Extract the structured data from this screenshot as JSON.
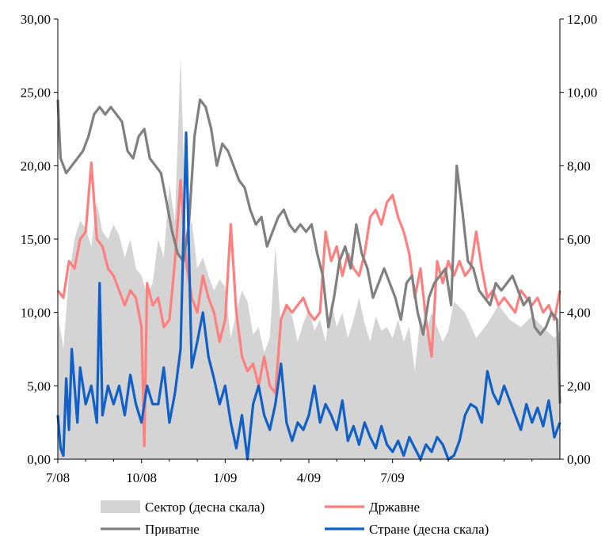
{
  "chart_data": {
    "type": "line",
    "title": "",
    "x_tick_labels": [
      "7/08",
      "10/08",
      "1/09",
      "4/09",
      "7/09"
    ],
    "y_left": {
      "ylim": [
        0,
        30
      ],
      "ticks": [
        "0,00",
        "5,00",
        "10,00",
        "15,00",
        "20,00",
        "25,00",
        "30,00"
      ]
    },
    "y_right": {
      "ylim": [
        0,
        12
      ],
      "ticks": [
        "0,00",
        "2,00",
        "4,00",
        "6,00",
        "8,00",
        "10,00",
        "12,00"
      ]
    },
    "x_range_months": [
      0,
      18
    ],
    "grid": false,
    "legend_position": "bottom",
    "legend": [
      {
        "label": "Сектор (десна скала)",
        "kind": "area",
        "color": "#d4d4d4"
      },
      {
        "label": "Државне",
        "kind": "line",
        "color": "#ff7f7f"
      },
      {
        "label": "Приватне",
        "kind": "line",
        "color": "#808080"
      },
      {
        "label": "Стране (десна скала)",
        "kind": "line",
        "color": "#1060c8"
      }
    ],
    "series": [
      {
        "name": "Сектор (десна скала)",
        "axis": "right",
        "style": "area",
        "color": "#d4d4d4",
        "x": [
          0,
          0.2,
          0.4,
          0.6,
          0.8,
          1.0,
          1.2,
          1.4,
          1.6,
          1.8,
          2.0,
          2.2,
          2.4,
          2.6,
          2.8,
          3.0,
          3.2,
          3.4,
          3.6,
          3.8,
          4.0,
          4.2,
          4.4,
          4.6,
          4.8,
          5.0,
          5.2,
          5.4,
          5.6,
          5.8,
          6.0,
          6.2,
          6.4,
          6.6,
          6.8,
          7.0,
          7.2,
          7.4,
          7.6,
          7.8,
          8.0,
          8.2,
          8.4,
          8.6,
          8.8,
          9.0,
          9.2,
          9.4,
          9.6,
          9.8,
          10.0,
          10.2,
          10.4,
          10.6,
          10.8,
          11.0,
          11.2,
          11.4,
          11.6,
          11.8,
          12.0,
          12.2,
          12.4,
          12.6,
          12.8,
          13.0,
          13.2,
          13.4,
          13.6,
          13.8,
          14.0,
          14.2,
          14.6,
          15.0,
          15.4,
          15.8,
          16.2,
          16.6,
          17.0,
          17.4,
          17.8,
          18.0
        ],
        "values": [
          4.0,
          3.0,
          5.0,
          6.0,
          6.5,
          6.3,
          5.8,
          7.0,
          6.2,
          6.0,
          6.4,
          6.1,
          5.5,
          6.0,
          5.2,
          5.0,
          4.5,
          4.8,
          6.0,
          5.5,
          7.5,
          6.5,
          11.0,
          6.0,
          6.5,
          5.2,
          5.5,
          5.0,
          4.6,
          4.9,
          4.7,
          3.3,
          4.0,
          4.6,
          4.3,
          3.4,
          3.6,
          2.9,
          3.3,
          5.8,
          3.6,
          4.2,
          3.9,
          3.2,
          3.7,
          4.1,
          3.5,
          3.8,
          3.2,
          4.3,
          3.6,
          4.0,
          3.3,
          3.8,
          4.4,
          3.7,
          3.2,
          3.9,
          3.5,
          3.6,
          3.3,
          3.8,
          3.2,
          3.6,
          2.4,
          3.9,
          3.4,
          4.0,
          3.6,
          3.2,
          3.5,
          4.3,
          4.0,
          3.3,
          3.7,
          4.2,
          3.8,
          3.6,
          3.9,
          3.6,
          3.3,
          3.5
        ]
      },
      {
        "name": "Државне",
        "axis": "left",
        "style": "line",
        "color": "#ff7f7f",
        "x": [
          0,
          0.2,
          0.4,
          0.6,
          0.8,
          1.0,
          1.2,
          1.4,
          1.6,
          1.8,
          2.0,
          2.2,
          2.4,
          2.6,
          2.8,
          3.0,
          3.1,
          3.2,
          3.4,
          3.6,
          3.8,
          4.0,
          4.2,
          4.4,
          4.6,
          4.8,
          5.0,
          5.2,
          5.4,
          5.6,
          5.8,
          6.0,
          6.2,
          6.4,
          6.6,
          6.8,
          7.0,
          7.2,
          7.4,
          7.6,
          7.8,
          8.0,
          8.2,
          8.4,
          8.6,
          8.8,
          9.0,
          9.2,
          9.4,
          9.6,
          9.8,
          10.0,
          10.2,
          10.4,
          10.6,
          10.8,
          11.0,
          11.2,
          11.4,
          11.6,
          11.8,
          12.0,
          12.2,
          12.4,
          12.6,
          12.8,
          13.0,
          13.2,
          13.4,
          13.6,
          13.8,
          14.0,
          14.2,
          14.4,
          14.6,
          14.8,
          15.0,
          15.2,
          15.4,
          15.6,
          15.8,
          16.0,
          16.2,
          16.4,
          16.6,
          16.8,
          17.0,
          17.2,
          17.4,
          17.6,
          17.8,
          18.0
        ],
        "values": [
          11.5,
          11.0,
          13.5,
          13.0,
          15.0,
          15.5,
          20.2,
          15.0,
          14.5,
          13.0,
          12.5,
          11.5,
          10.5,
          11.5,
          11.0,
          9.0,
          0.9,
          12.0,
          10.5,
          11.0,
          9.0,
          9.5,
          13.5,
          19.0,
          13.5,
          11.0,
          10.0,
          12.5,
          11.0,
          10.0,
          8.0,
          9.5,
          16.0,
          10.0,
          7.0,
          6.0,
          6.5,
          5.0,
          7.0,
          5.0,
          4.5,
          9.5,
          10.5,
          10.0,
          10.5,
          11.0,
          10.0,
          9.5,
          10.0,
          15.5,
          13.5,
          14.5,
          12.5,
          14.0,
          13.0,
          12.5,
          14.0,
          16.5,
          17.0,
          16.0,
          17.5,
          18.0,
          16.5,
          15.5,
          14.0,
          11.0,
          13.0,
          9.5,
          7.0,
          13.5,
          12.0,
          13.5,
          12.5,
          13.5,
          12.5,
          13.0,
          15.5,
          13.0,
          11.0,
          11.5,
          10.5,
          11.0,
          10.5,
          10.0,
          11.5,
          11.0,
          10.5,
          11.0,
          10.0,
          10.5,
          9.5,
          11.5
        ]
      },
      {
        "name": "Приватне",
        "axis": "left",
        "style": "line",
        "color": "#808080",
        "x": [
          0,
          0.1,
          0.3,
          0.5,
          0.7,
          0.9,
          1.1,
          1.3,
          1.5,
          1.7,
          1.9,
          2.1,
          2.3,
          2.5,
          2.7,
          2.9,
          3.1,
          3.3,
          3.5,
          3.7,
          3.9,
          4.1,
          4.3,
          4.5,
          4.7,
          4.9,
          5.1,
          5.3,
          5.5,
          5.7,
          5.9,
          6.1,
          6.3,
          6.5,
          6.7,
          6.9,
          7.1,
          7.3,
          7.5,
          7.7,
          7.9,
          8.1,
          8.3,
          8.5,
          8.7,
          8.9,
          9.1,
          9.3,
          9.5,
          9.7,
          9.9,
          10.1,
          10.3,
          10.5,
          10.7,
          10.9,
          11.1,
          11.3,
          11.5,
          11.7,
          11.9,
          12.1,
          12.3,
          12.5,
          12.7,
          12.9,
          13.1,
          13.3,
          13.5,
          13.7,
          13.9,
          14.1,
          14.3,
          14.5,
          14.7,
          14.9,
          15.1,
          15.3,
          15.5,
          15.7,
          15.9,
          16.1,
          16.3,
          16.5,
          16.7,
          16.9,
          17.1,
          17.3,
          17.5,
          17.7,
          17.9,
          18.0
        ],
        "values": [
          24.5,
          20.5,
          19.5,
          20.0,
          20.5,
          21.0,
          22.0,
          23.5,
          24.0,
          23.5,
          24.0,
          23.5,
          23.0,
          21.0,
          20.5,
          22.0,
          22.5,
          20.5,
          20.0,
          19.5,
          17.5,
          15.5,
          14.0,
          13.5,
          16.0,
          22.0,
          24.5,
          24.0,
          22.5,
          20.0,
          21.5,
          21.0,
          20.0,
          19.0,
          18.5,
          17.0,
          16.0,
          16.5,
          14.5,
          15.5,
          16.5,
          17.0,
          16.0,
          15.5,
          16.0,
          15.5,
          16.0,
          14.0,
          12.5,
          9.0,
          11.0,
          13.5,
          14.5,
          13.0,
          16.0,
          14.0,
          13.0,
          11.0,
          12.0,
          13.0,
          12.0,
          11.0,
          9.5,
          12.0,
          12.5,
          10.0,
          8.5,
          11.0,
          12.0,
          12.5,
          13.0,
          10.5,
          20.0,
          17.0,
          13.5,
          13.0,
          11.5,
          11.0,
          10.5,
          12.0,
          11.5,
          12.0,
          12.5,
          11.5,
          10.5,
          11.0,
          9.0,
          8.5,
          9.0,
          10.0,
          9.5,
          3.8
        ]
      },
      {
        "name": "Стране (десна скала)",
        "axis": "right",
        "style": "line",
        "color": "#1060c8",
        "x": [
          0,
          0.1,
          0.2,
          0.3,
          0.4,
          0.5,
          0.6,
          0.7,
          0.8,
          1.0,
          1.2,
          1.4,
          1.5,
          1.6,
          1.8,
          2.0,
          2.2,
          2.4,
          2.6,
          2.8,
          3.0,
          3.2,
          3.4,
          3.6,
          3.8,
          4.0,
          4.2,
          4.4,
          4.6,
          4.8,
          5.0,
          5.2,
          5.4,
          5.6,
          5.8,
          6.0,
          6.2,
          6.4,
          6.6,
          6.8,
          7.0,
          7.2,
          7.4,
          7.6,
          7.8,
          8.0,
          8.2,
          8.4,
          8.6,
          8.8,
          9.0,
          9.2,
          9.4,
          9.6,
          9.8,
          10.0,
          10.2,
          10.4,
          10.6,
          10.8,
          11.0,
          11.2,
          11.4,
          11.6,
          11.8,
          12.0,
          12.2,
          12.4,
          12.6,
          12.8,
          13.0,
          13.2,
          13.4,
          13.6,
          13.8,
          14.0,
          14.2,
          14.4,
          14.6,
          14.8,
          15.0,
          15.2,
          15.4,
          15.6,
          15.8,
          16.0,
          16.2,
          16.4,
          16.6,
          16.8,
          17.0,
          17.2,
          17.4,
          17.6,
          17.8,
          18.0
        ],
        "values": [
          1.2,
          0.3,
          0.1,
          2.2,
          0.8,
          3.0,
          2.0,
          1.0,
          2.5,
          1.5,
          2.0,
          1.0,
          4.8,
          1.2,
          2.0,
          1.5,
          2.0,
          1.2,
          2.3,
          1.5,
          1.0,
          2.0,
          1.5,
          1.5,
          2.5,
          1.0,
          1.8,
          3.0,
          8.9,
          2.5,
          3.2,
          4.0,
          2.8,
          2.2,
          1.5,
          2.0,
          1.0,
          0.3,
          1.2,
          0.0,
          1.5,
          2.0,
          1.2,
          0.8,
          1.5,
          2.6,
          1.0,
          0.5,
          1.0,
          0.8,
          1.2,
          2.0,
          1.0,
          1.5,
          1.2,
          0.8,
          1.6,
          0.5,
          0.9,
          0.4,
          1.0,
          0.6,
          0.3,
          0.9,
          0.4,
          0.2,
          0.5,
          0.1,
          0.6,
          0.3,
          0.0,
          0.4,
          0.2,
          0.6,
          0.4,
          0.0,
          0.1,
          0.5,
          1.2,
          1.5,
          1.4,
          1.0,
          2.4,
          1.8,
          1.5,
          2.0,
          1.6,
          1.2,
          0.8,
          1.5,
          1.0,
          1.4,
          0.9,
          1.6,
          0.6,
          1.0
        ]
      }
    ]
  }
}
